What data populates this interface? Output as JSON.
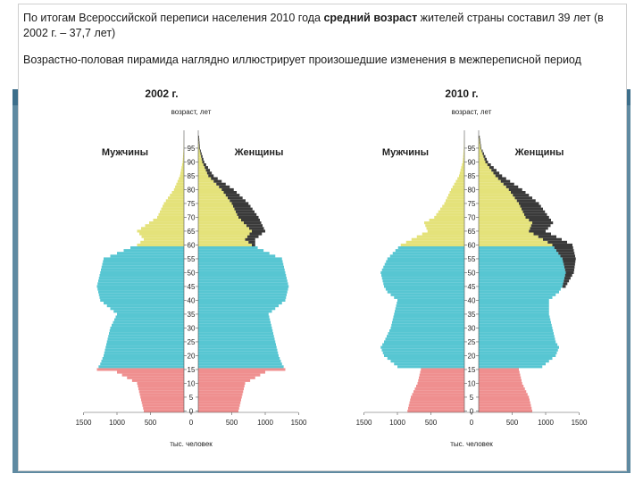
{
  "slide": {
    "para1_pre": "По итогам Всероссийской переписи населения 2010 года ",
    "para1_bold": "средний возраст",
    "para1_post": " жителей страны составил 39 лет (в 2002 г. – 37,7 лет)",
    "para2": "Возрастно-половая пирамида наглядно иллюстрирует произошедшие изменения в межпереписной период"
  },
  "colors": {
    "young": "#ef8f8f",
    "working": "#57c6d2",
    "elderly": "#e4e27a",
    "stroke": "#555555",
    "overlay": "#3a3a3a"
  },
  "chart_data": [
    {
      "type": "bar",
      "panel_title": "2002 г.",
      "ylabel": "возраст, лет",
      "xlabel": "тыс. человек",
      "male_label": "Мужчины",
      "female_label": "Женщины",
      "age_ticks": [
        "0",
        "5",
        "10",
        "15",
        "20",
        "25",
        "30",
        "35",
        "40",
        "45",
        "50",
        "55",
        "60",
        "65",
        "70",
        "75",
        "80",
        "85",
        "90",
        "95"
      ],
      "x_ticks": [
        "1500",
        "1000",
        "500",
        "0",
        "500",
        "1000",
        "1500"
      ],
      "xlim": [
        -1500,
        1500
      ],
      "ylim": [
        0,
        100
      ],
      "male_anchor_ages": [
        0,
        5,
        10,
        14,
        15,
        17,
        20,
        25,
        30,
        35,
        38,
        40,
        45,
        50,
        55,
        56,
        60,
        62,
        65,
        70,
        75,
        80,
        85,
        90,
        95,
        100
      ],
      "male_anchor_values": [
        600,
        650,
        700,
        1000,
        1300,
        1250,
        1200,
        1150,
        1100,
        1000,
        1150,
        1250,
        1300,
        1250,
        1200,
        1100,
        700,
        600,
        700,
        400,
        300,
        150,
        60,
        20,
        5,
        0
      ],
      "female_anchor_ages": [
        0,
        5,
        10,
        14,
        15,
        17,
        20,
        25,
        30,
        35,
        38,
        40,
        45,
        50,
        55,
        56,
        60,
        62,
        65,
        70,
        75,
        80,
        85,
        90,
        95,
        100
      ],
      "female_anchor_values": [
        600,
        650,
        700,
        1000,
        1300,
        1250,
        1200,
        1150,
        1100,
        1050,
        1200,
        1300,
        1350,
        1300,
        1250,
        1150,
        800,
        700,
        800,
        600,
        500,
        350,
        150,
        60,
        15,
        0
      ],
      "overlay_anchor_ages": [
        60,
        62,
        65,
        70,
        75,
        80,
        85,
        90,
        95
      ],
      "overlay_anchor_values": [
        50,
        150,
        200,
        300,
        250,
        180,
        80,
        30,
        10
      ]
    },
    {
      "type": "bar",
      "panel_title": "2010 г.",
      "ylabel": "возраст, лет",
      "xlabel": "тыс. человек",
      "male_label": "Мужчины",
      "female_label": "Женщины",
      "age_ticks": [
        "0",
        "5",
        "10",
        "15",
        "20",
        "25",
        "30",
        "35",
        "40",
        "45",
        "50",
        "55",
        "60",
        "65",
        "70",
        "75",
        "80",
        "85",
        "90",
        "95"
      ],
      "x_ticks": [
        "1500",
        "1000",
        "500",
        "0",
        "500",
        "1000",
        "1500"
      ],
      "xlim": [
        -1500,
        1500
      ],
      "ylim": [
        0,
        100
      ],
      "male_anchor_ages": [
        0,
        5,
        10,
        15,
        16,
        20,
        23,
        25,
        30,
        35,
        40,
        43,
        45,
        50,
        55,
        60,
        65,
        68,
        70,
        75,
        80,
        85,
        90,
        95,
        100
      ],
      "male_anchor_values": [
        850,
        800,
        700,
        650,
        1000,
        1200,
        1250,
        1200,
        1100,
        1050,
        1000,
        1150,
        1200,
        1250,
        1150,
        950,
        550,
        600,
        450,
        300,
        200,
        80,
        25,
        8,
        0
      ],
      "female_anchor_ages": [
        0,
        5,
        10,
        15,
        16,
        20,
        23,
        25,
        30,
        35,
        40,
        43,
        45,
        50,
        55,
        60,
        65,
        68,
        70,
        75,
        80,
        85,
        90,
        95,
        100
      ],
      "female_anchor_values": [
        800,
        750,
        650,
        600,
        950,
        1150,
        1200,
        1150,
        1100,
        1050,
        1050,
        1200,
        1250,
        1300,
        1250,
        1100,
        750,
        800,
        700,
        600,
        450,
        250,
        100,
        30,
        0
      ],
      "overlay_anchor_ages": [
        45,
        50,
        55,
        60,
        65,
        70,
        75,
        80,
        85,
        90,
        95
      ],
      "overlay_anchor_values": [
        50,
        120,
        200,
        300,
        250,
        350,
        300,
        200,
        100,
        40,
        10
      ]
    }
  ]
}
